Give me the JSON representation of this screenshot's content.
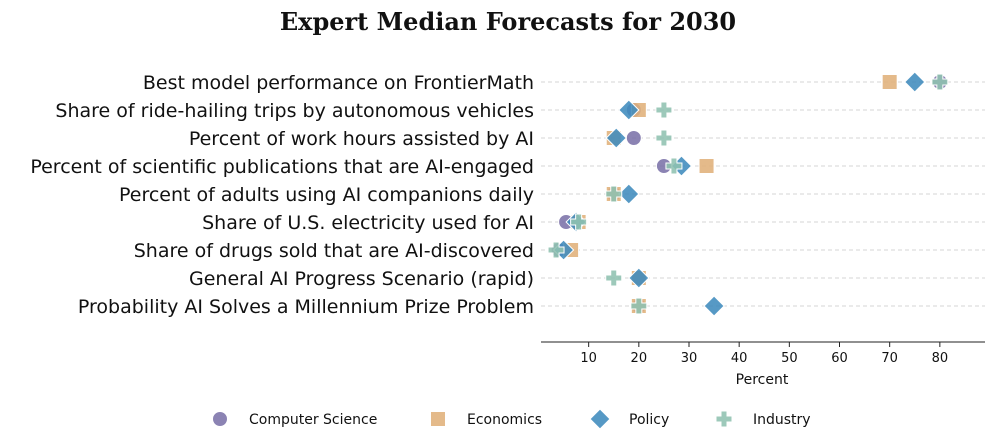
{
  "chart_data": {
    "type": "scatter",
    "title": "Expert Median Forecasts for 2030",
    "xlabel": "Percent",
    "xlim": [
      0.5,
      89
    ],
    "xticks": [
      10,
      20,
      30,
      40,
      50,
      60,
      70,
      80
    ],
    "grid": "horizontal-dashed",
    "legend_position": "bottom",
    "categories": [
      "Best model performance on FrontierMath",
      "Share of ride-hailing trips by autonomous vehicles",
      "Percent of work hours assisted by AI",
      "Percent of scientific publications that are AI-engaged",
      "Percent of adults using AI companions daily",
      "Share of U.S. electricity used for AI",
      "Share of drugs sold that are AI-discovered",
      "General AI Progress Scenario (rapid)",
      "Probability AI Solves a Millennium Prize Problem"
    ],
    "series": [
      {
        "name": "Computer Science",
        "marker": "circle",
        "color": "#7b72a8",
        "values": [
          80,
          19,
          19,
          25,
          15,
          5.5,
          4,
          20,
          20
        ]
      },
      {
        "name": "Economics",
        "marker": "square",
        "color": "#e0b07a",
        "values": [
          70,
          20,
          15,
          33.5,
          15,
          8,
          6.5,
          20,
          20
        ]
      },
      {
        "name": "Policy",
        "marker": "diamond",
        "color": "#3f8bbd",
        "values": [
          75,
          18,
          15.5,
          28.5,
          18,
          7.5,
          5,
          20,
          35
        ]
      },
      {
        "name": "Industry",
        "marker": "plus",
        "color": "#8fc1b0",
        "values": [
          80,
          25,
          25,
          27,
          15,
          8,
          3.5,
          15,
          20
        ]
      }
    ]
  }
}
